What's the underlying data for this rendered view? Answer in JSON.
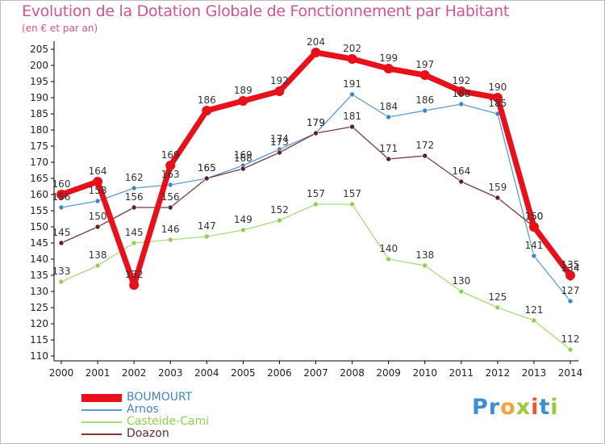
{
  "header": {
    "title": "Evolution de la Dotation Globale de Fonctionnement par Habitant",
    "subtitle": "(en € et par an)"
  },
  "logo": {
    "text": "Proxiti",
    "letters": [
      {
        "ch": "P",
        "color": "#3a8fd6"
      },
      {
        "ch": "r",
        "color": "#3a8fd6"
      },
      {
        "ch": "o",
        "color": "#f2a53a"
      },
      {
        "ch": "x",
        "color": "#9bc93a"
      },
      {
        "ch": "i",
        "color": "#e8572f"
      },
      {
        "ch": "t",
        "color": "#3a8fd6"
      },
      {
        "ch": "i",
        "color": "#9bc93a"
      }
    ]
  },
  "chart_data": {
    "type": "line",
    "title": "Evolution de la Dotation Globale de Fonctionnement par Habitant",
    "subtitle": "(en € et par an)",
    "x": [
      "2000",
      "2001",
      "2002",
      "2003",
      "2004",
      "2005",
      "2006",
      "2007",
      "2008",
      "2009",
      "2010",
      "2011",
      "2012",
      "2013",
      "2014"
    ],
    "ylim": [
      110,
      205
    ],
    "yticks": [
      110,
      115,
      120,
      125,
      130,
      135,
      140,
      145,
      150,
      155,
      160,
      165,
      170,
      175,
      180,
      185,
      190,
      195,
      200,
      205
    ],
    "grid": false,
    "legend_position": "bottom-left",
    "series": [
      {
        "name": "BOUMOURT",
        "color": "#e8101a",
        "marker_fill": "#e8101a",
        "width": 7,
        "marker_r": 6,
        "values": [
          160,
          164,
          132,
          169,
          186,
          189,
          192,
          204,
          202,
          199,
          197,
          192,
          190,
          150,
          135
        ]
      },
      {
        "name": "Arnos",
        "color": "#5b9bd5",
        "marker_fill": "#3f86c8",
        "width": 1.3,
        "marker_r": 3,
        "values": [
          156,
          158,
          162,
          163,
          165,
          169,
          174,
          179,
          191,
          184,
          186,
          188,
          185,
          141,
          127
        ]
      },
      {
        "name": "Casteide-Cami",
        "color": "#a6dc7a",
        "marker_fill": "#8fd14f",
        "width": 1.3,
        "marker_r": 3,
        "values": [
          133,
          138,
          145,
          146,
          147,
          149,
          152,
          157,
          157,
          140,
          138,
          130,
          125,
          121,
          112
        ]
      },
      {
        "name": "Doazon",
        "color": "#7a3b3b",
        "marker_fill": "#5e1f25",
        "width": 1.3,
        "marker_r": 3,
        "values": [
          145,
          150,
          156,
          156,
          165,
          168,
          173,
          179,
          181,
          171,
          172,
          164,
          159,
          150,
          134
        ]
      }
    ]
  }
}
